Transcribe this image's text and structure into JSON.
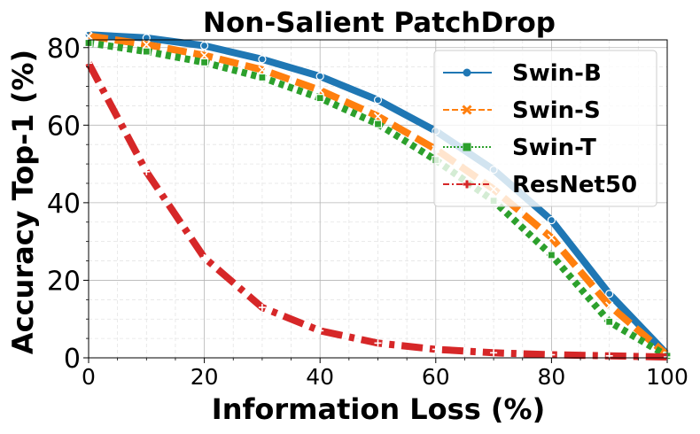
{
  "chart_data": {
    "type": "line",
    "title": "Non-Salient PatchDrop",
    "xlabel": "Information Loss (%)",
    "ylabel": "Accuracy Top-1 (%)",
    "xlim": [
      0,
      100
    ],
    "ylim": [
      0,
      82
    ],
    "xticks": [
      0,
      20,
      40,
      60,
      80,
      100
    ],
    "yticks": [
      0,
      20,
      40,
      60,
      80
    ],
    "grid": true,
    "legend_position": "top-right",
    "x": [
      0,
      10,
      20,
      30,
      40,
      50,
      60,
      70,
      80,
      90,
      100
    ],
    "series": [
      {
        "name": "Swin-B",
        "color": "#1f77b4",
        "style": "solid",
        "marker": "circle",
        "values": [
          83.3,
          82.5,
          80.5,
          77.0,
          72.6,
          66.5,
          58.5,
          48.5,
          35.5,
          16.5,
          0.9
        ]
      },
      {
        "name": "Swin-S",
        "color": "#ff7f0e",
        "style": "dashed",
        "marker": "x",
        "values": [
          83.0,
          80.8,
          78.0,
          74.3,
          69.0,
          62.3,
          53.8,
          43.5,
          31.0,
          13.5,
          0.7
        ]
      },
      {
        "name": "Swin-T",
        "color": "#2ca02c",
        "style": "dotted",
        "marker": "square",
        "values": [
          81.2,
          79.0,
          76.2,
          72.3,
          67.0,
          60.3,
          51.0,
          40.5,
          26.5,
          9.3,
          0.5
        ]
      },
      {
        "name": "ResNet50",
        "color": "#d62728",
        "style": "dashdot",
        "marker": "plus",
        "values": [
          76.0,
          48.0,
          25.8,
          13.0,
          7.0,
          3.8,
          2.2,
          1.3,
          0.8,
          0.5,
          0.2
        ]
      }
    ]
  }
}
